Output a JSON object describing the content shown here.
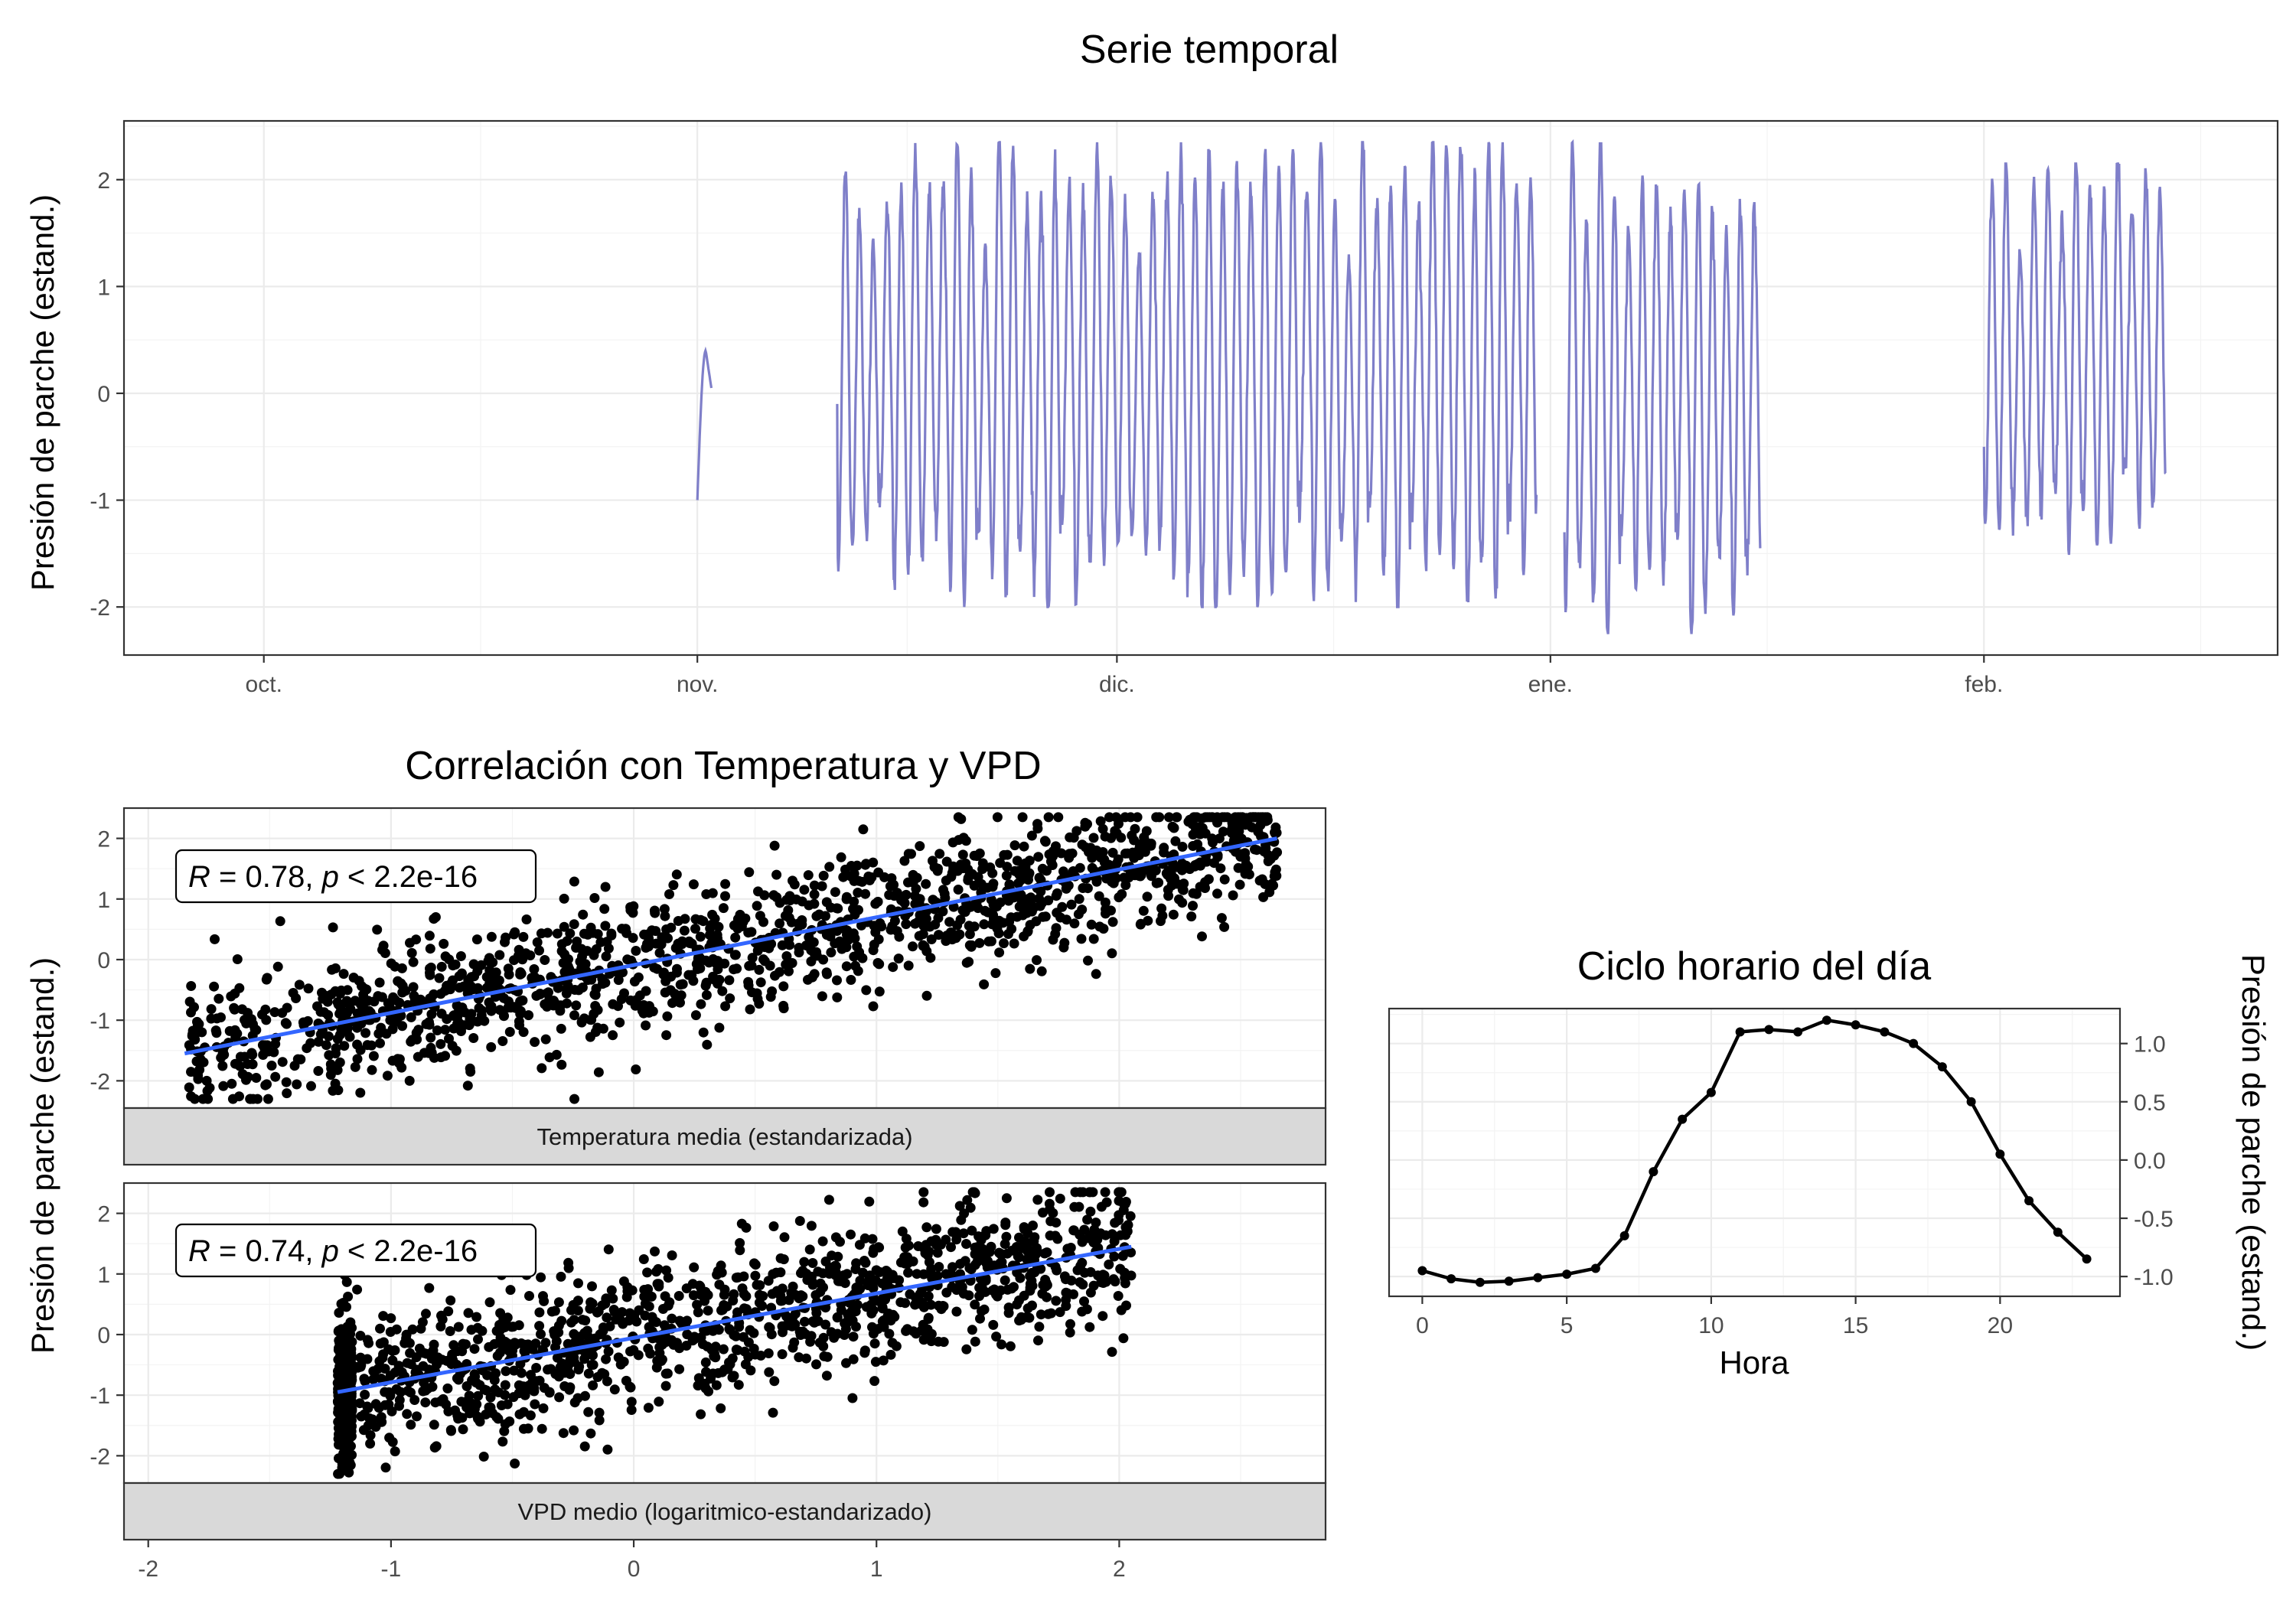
{
  "chart_data": [
    {
      "type": "line",
      "title": "Serie temporal",
      "ylabel": "Presión de parche (estand.)",
      "xlabel": "",
      "x_ticks": [
        "oct.",
        "nov.",
        "dic.",
        "ene.",
        "feb."
      ],
      "x_tick_dates": [
        "2023-10-01",
        "2023-11-01",
        "2023-12-01",
        "2024-01-01",
        "2024-02-01"
      ],
      "xlim": [
        "2023-09-21",
        "2024-02-22"
      ],
      "ylim": [
        -2.45,
        2.55
      ],
      "y_ticks": [
        -2,
        -1,
        0,
        1,
        2
      ],
      "line_color": "#7f7fc9",
      "grid": true,
      "segments": [
        {
          "start": "2023-11-01",
          "end": "2023-11-02",
          "min": -1.0,
          "max": 0.4,
          "first": -1.0,
          "last": 0.05
        },
        {
          "start": "2023-11-11",
          "end": "2023-12-31",
          "min": -2.0,
          "max": 2.35,
          "first": -0.1,
          "last": -0.95
        },
        {
          "start": "2024-01-02",
          "end": "2024-01-16",
          "min": -2.3,
          "max": 2.35,
          "first": -1.3,
          "last": -1.45
        },
        {
          "start": "2024-02-01",
          "end": "2024-02-14",
          "min": -1.6,
          "max": 2.15,
          "first": -0.5,
          "last": -0.75
        }
      ]
    },
    {
      "type": "scatter",
      "title": "Correlación con Temperatura y VPD",
      "ylabel": "Presión de parche (estand.)",
      "xlim": [
        -2.1,
        2.85
      ],
      "x_ticks": [
        -2,
        -1,
        0,
        1,
        2
      ],
      "y_ticks": [
        -2,
        -1,
        0,
        1,
        2
      ],
      "point_color": "#000000",
      "fit_color": "#3366ff",
      "panels": [
        {
          "strip": "Temperatura media (estandarizada)",
          "annotation": {
            "R_label": "R",
            "r_text": " = 0.78, ",
            "p_label": "p",
            "p_text": " < 2.2e-16"
          },
          "ylim": [
            -2.45,
            2.5
          ],
          "x_range": [
            -1.85,
            2.65
          ],
          "fit": {
            "x": [
              -1.85,
              2.65
            ],
            "y": [
              -1.55,
              2.0
            ]
          },
          "residual_sd": 0.55
        },
        {
          "strip": "VPD medio (logaritmico-estandarizado)",
          "annotation": {
            "R_label": "R",
            "r_text": " = 0.74, ",
            "p_label": "p",
            "p_text": " < 2.2e-16"
          },
          "ylim": [
            -2.45,
            2.5
          ],
          "x_range": [
            -1.22,
            2.05
          ],
          "fit": {
            "x": [
              -1.22,
              2.05
            ],
            "y": [
              -0.95,
              1.45
            ]
          },
          "residual_sd": 0.6
        }
      ]
    },
    {
      "type": "line",
      "title": "Ciclo horario del día",
      "xlabel": "Hora",
      "ylabel": "Presión de parche (estand.)",
      "xlim": [
        -1.15,
        24.15
      ],
      "ylim": [
        -1.17,
        1.3
      ],
      "x_ticks": [
        0,
        5,
        10,
        15,
        20
      ],
      "y_ticks": [
        -1.0,
        -0.5,
        0.0,
        0.5,
        1.0
      ],
      "y_tick_labels": [
        "-1.0",
        "-0.5",
        "0.0",
        "0.5",
        "1.0"
      ],
      "x": [
        0,
        1,
        2,
        3,
        4,
        5,
        6,
        7,
        8,
        9,
        10,
        11,
        12,
        13,
        14,
        15,
        16,
        17,
        18,
        19,
        20,
        21,
        22,
        23
      ],
      "values": [
        -0.95,
        -1.02,
        -1.05,
        -1.04,
        -1.01,
        -0.98,
        -0.93,
        -0.65,
        -0.1,
        0.35,
        0.58,
        1.1,
        1.12,
        1.1,
        1.2,
        1.16,
        1.1,
        1.0,
        0.8,
        0.5,
        0.05,
        -0.35,
        -0.62,
        -0.85
      ],
      "line_color": "#000000"
    }
  ]
}
